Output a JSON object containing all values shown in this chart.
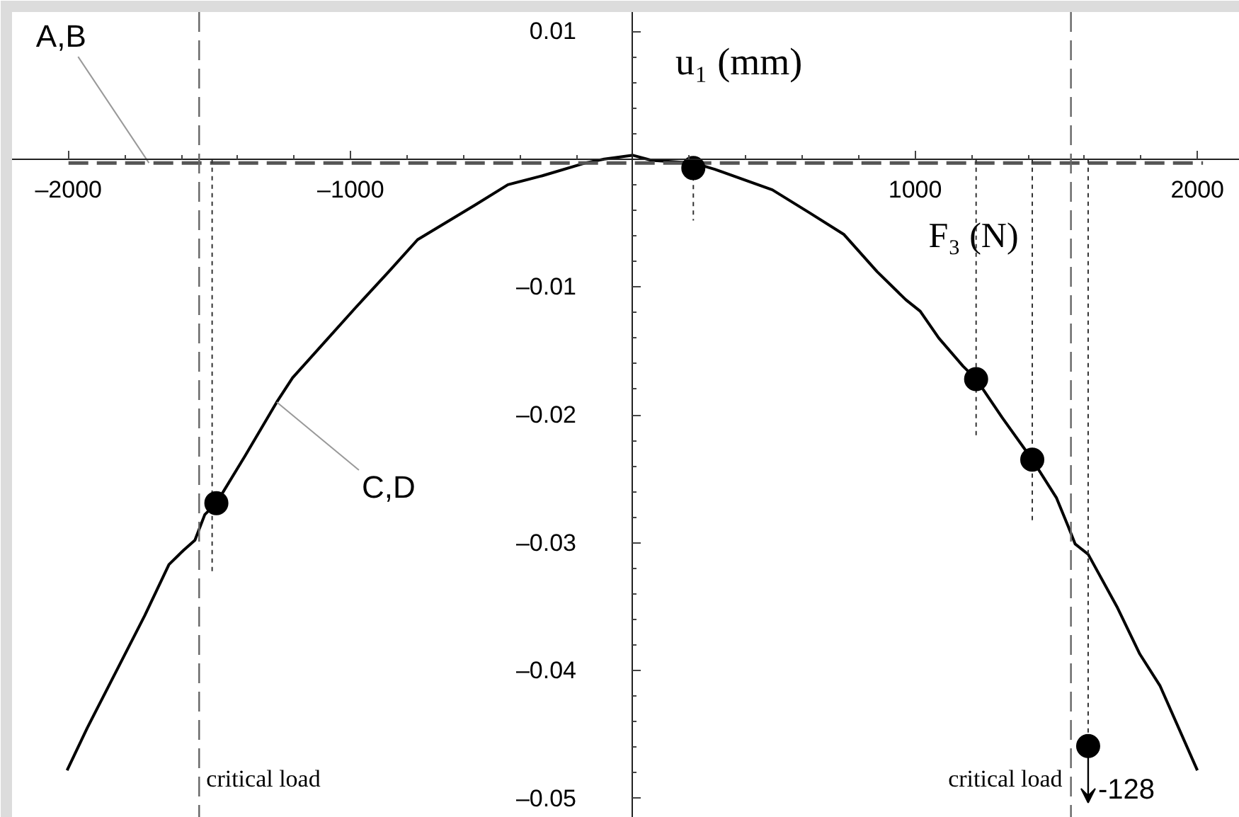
{
  "chart_data": {
    "type": "line",
    "xlabel": "F₃ (N)",
    "ylabel": "u₁ (mm)",
    "xlim": [
      -2200,
      2150
    ],
    "ylim": [
      -0.0515,
      0.0115
    ],
    "xticks": [
      {
        "value": -2000,
        "label": "–2000"
      },
      {
        "value": -1000,
        "label": "–1000"
      },
      1000,
      2000,
      {
        "value": -1800,
        "label": null
      },
      {
        "value": -1600,
        "label": null
      },
      {
        "value": -1400,
        "label": null
      },
      {
        "value": -1200,
        "label": null
      },
      {
        "value": -800,
        "label": null
      },
      {
        "value": -600,
        "label": null
      },
      {
        "value": -400,
        "label": null
      },
      {
        "value": -200,
        "label": null
      },
      {
        "value": 200,
        "label": null
      },
      {
        "value": 400,
        "label": null
      },
      {
        "value": 600,
        "label": null
      },
      {
        "value": 800,
        "label": null
      },
      {
        "value": 1200,
        "label": null
      },
      {
        "value": 1400,
        "label": null
      },
      {
        "value": 1600,
        "label": null
      },
      {
        "value": 1800,
        "label": null
      }
    ],
    "yticks": [
      0.01,
      {
        "value": -0.01,
        "label": "–0.01"
      },
      {
        "value": -0.02,
        "label": "–0.02"
      },
      {
        "value": -0.03,
        "label": "–0.03"
      },
      {
        "value": -0.04,
        "label": "–0.04"
      },
      {
        "value": -0.05,
        "label": "–0.05"
      },
      {
        "value": 0.008,
        "label": null
      },
      {
        "value": 0.006,
        "label": null
      },
      {
        "value": 0.004,
        "label": null
      },
      {
        "value": 0.002,
        "label": null
      },
      {
        "value": -0.002,
        "label": null
      },
      {
        "value": -0.004,
        "label": null
      },
      {
        "value": -0.006,
        "label": null
      },
      {
        "value": -0.008,
        "label": null
      },
      {
        "value": -0.012,
        "label": null
      },
      {
        "value": -0.014,
        "label": null
      },
      {
        "value": -0.016,
        "label": null
      },
      {
        "value": -0.018,
        "label": null
      },
      {
        "value": -0.022,
        "label": null
      },
      {
        "value": -0.024,
        "label": null
      },
      {
        "value": -0.026,
        "label": null
      },
      {
        "value": -0.028,
        "label": null
      },
      {
        "value": -0.032,
        "label": null
      },
      {
        "value": -0.034,
        "label": null
      },
      {
        "value": -0.036,
        "label": null
      },
      {
        "value": -0.038,
        "label": null
      },
      {
        "value": -0.042,
        "label": null
      },
      {
        "value": -0.044,
        "label": null
      },
      {
        "value": -0.046,
        "label": null
      },
      {
        "value": -0.048,
        "label": null
      }
    ],
    "grid": false,
    "series": [
      {
        "color": "#000000",
        "line_style": "solid",
        "x": [
          -2005,
          -1934,
          -1832,
          -1730,
          -1644,
          -1593,
          -1552,
          -1517,
          -1476,
          -1374,
          -1262,
          -1206,
          -1104,
          -982,
          -865,
          -763,
          -560,
          -443,
          -321,
          -168,
          -102,
          0,
          66,
          214,
          290,
          494,
          626,
          748,
          865,
          967,
          1018,
          1084,
          1170,
          1216,
          1308,
          1415,
          1501,
          1542,
          1567,
          1613,
          1715,
          1796,
          1868,
          2000
        ],
        "values": [
          -0.0478,
          -0.0445,
          -0.0401,
          -0.0357,
          -0.0317,
          -0.0306,
          -0.0298,
          -0.0278,
          -0.0269,
          -0.0232,
          -0.019,
          -0.0171,
          -0.0146,
          -0.0116,
          -0.0088,
          -0.0063,
          -0.0036,
          -0.002,
          -0.0013,
          -0.0003,
          0,
          0.0003,
          -0.0001,
          -0.0003,
          -0.0008,
          -0.0024,
          -0.0042,
          -0.0059,
          -0.0088,
          -0.011,
          -0.0119,
          -0.014,
          -0.0162,
          -0.0172,
          -0.0202,
          -0.0235,
          -0.0265,
          -0.0287,
          -0.0301,
          -0.0309,
          -0.035,
          -0.0387,
          -0.0412,
          -0.0478
        ]
      },
      {
        "type": "line",
        "color": "#555555",
        "line_style": "dashed",
        "x": [
          -2000,
          2020
        ],
        "values": [
          -0.0003,
          -0.0003
        ]
      },
      {
        "type": "line",
        "color": "#333333",
        "line_style": "dotted",
        "x": [
          -1491,
          -1491
        ],
        "values": [
          0,
          -0.0324
        ]
      },
      {
        "type": "line",
        "color": "#333333",
        "line_style": "dotted",
        "x": [
          214,
          214
        ],
        "values": [
          -0.0007,
          -0.0048
        ]
      },
      {
        "type": "line",
        "color": "#333333",
        "line_style": "dotted",
        "x": [
          1216,
          1216
        ],
        "values": [
          0,
          -0.0219
        ]
      },
      {
        "type": "line",
        "color": "#333333",
        "line_style": "dotted",
        "x": [
          1415,
          1415
        ],
        "values": [
          0,
          -0.0284
        ]
      },
      {
        "type": "line",
        "color": "#333333",
        "line_style": "dotted",
        "x": [
          1613,
          1613
        ],
        "values": [
          0,
          -0.0459
        ]
      },
      {
        "type": "scatter",
        "color": "#000000",
        "marker": "circle",
        "x": [
          -1476,
          214,
          1216,
          1415,
          1613
        ],
        "values": [
          -0.0269,
          -0.0007,
          -0.0172,
          -0.0235,
          -0.0459
        ]
      }
    ],
    "ref_lines": [
      {
        "axis": "x",
        "value": -1537,
        "label": "critical load",
        "line_style": "dashed",
        "color": "#666666"
      },
      {
        "axis": "x",
        "value": 1552,
        "label": "critical load",
        "line_style": "dashed",
        "color": "#666666"
      }
    ],
    "annotations": [
      {
        "text": "A,B",
        "x": -1715,
        "y": -0.0003
      },
      {
        "text": "C,D",
        "x": -1262,
        "y": -0.019
      },
      {
        "text": "-128",
        "x": 1613,
        "y": -0.0459
      }
    ]
  }
}
